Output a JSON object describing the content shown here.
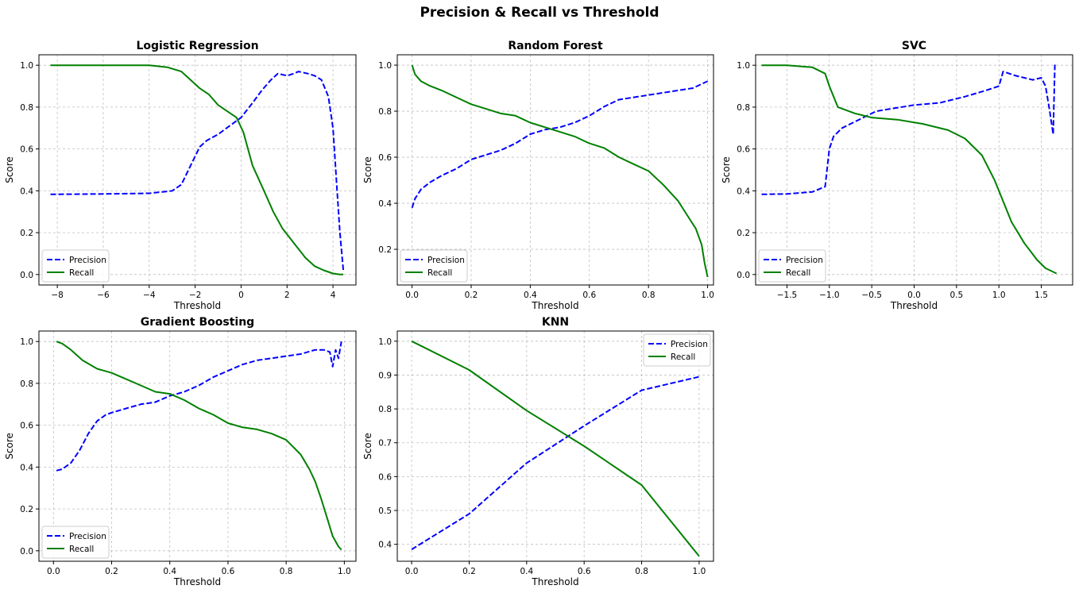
{
  "figure_title": "Precision & Recall vs Threshold",
  "chart_data": [
    {
      "type": "line",
      "title": "Logistic Regression",
      "xlabel": "Threshold",
      "ylabel": "Score",
      "xlim": [
        -8.8,
        5.0
      ],
      "ylim": [
        -0.05,
        1.05
      ],
      "xticks": [
        -8,
        -6,
        -4,
        -2,
        0,
        2,
        4
      ],
      "xtick_labels": [
        "−8",
        "−6",
        "−4",
        "−2",
        "0",
        "2",
        "4"
      ],
      "yticks": [
        0.0,
        0.2,
        0.4,
        0.6,
        0.8,
        1.0
      ],
      "ytick_labels": [
        "0.0",
        "0.2",
        "0.4",
        "0.6",
        "0.8",
        "1.0"
      ],
      "legend": "lower-left",
      "grid": true,
      "series": [
        {
          "name": "Precision",
          "color": "#0000ff",
          "style": "dashed",
          "x": [
            -8.3,
            -6.0,
            -4.0,
            -3.0,
            -2.6,
            -2.2,
            -1.8,
            -1.5,
            -1.0,
            -0.5,
            0.0,
            0.5,
            0.9,
            1.3,
            1.6,
            2.0,
            2.3,
            2.5,
            2.9,
            3.2,
            3.5,
            3.8,
            4.0,
            4.15,
            4.3,
            4.45
          ],
          "y": [
            0.383,
            0.385,
            0.388,
            0.4,
            0.43,
            0.52,
            0.61,
            0.64,
            0.67,
            0.71,
            0.75,
            0.82,
            0.88,
            0.93,
            0.96,
            0.95,
            0.96,
            0.97,
            0.96,
            0.95,
            0.93,
            0.85,
            0.7,
            0.45,
            0.2,
            0.02
          ]
        },
        {
          "name": "Recall",
          "color": "#008000",
          "style": "solid",
          "x": [
            -8.3,
            -6.0,
            -4.0,
            -3.2,
            -2.6,
            -2.2,
            -1.8,
            -1.4,
            -1.0,
            -0.6,
            -0.2,
            0.1,
            0.5,
            1.0,
            1.4,
            1.8,
            2.3,
            2.8,
            3.2,
            3.6,
            4.0,
            4.3,
            4.45
          ],
          "y": [
            1.0,
            1.0,
            1.0,
            0.99,
            0.97,
            0.93,
            0.89,
            0.86,
            0.81,
            0.78,
            0.75,
            0.68,
            0.52,
            0.4,
            0.3,
            0.22,
            0.15,
            0.08,
            0.04,
            0.02,
            0.005,
            0.0,
            0.0
          ]
        }
      ]
    },
    {
      "type": "line",
      "title": "Random Forest",
      "xlabel": "Threshold",
      "ylabel": "Score",
      "xlim": [
        -0.05,
        1.02
      ],
      "ylim": [
        0.045,
        1.045
      ],
      "xticks": [
        0.0,
        0.2,
        0.4,
        0.6,
        0.8,
        1.0
      ],
      "xtick_labels": [
        "0.0",
        "0.2",
        "0.4",
        "0.6",
        "0.8",
        "1.0"
      ],
      "yticks": [
        0.2,
        0.4,
        0.6,
        0.8,
        1.0
      ],
      "ytick_labels": [
        "0.2",
        "0.4",
        "0.6",
        "0.8",
        "1.0"
      ],
      "legend": "lower-left",
      "grid": true,
      "series": [
        {
          "name": "Precision",
          "color": "#0000ff",
          "style": "dashed",
          "x": [
            0.0,
            0.01,
            0.03,
            0.06,
            0.1,
            0.15,
            0.2,
            0.25,
            0.3,
            0.35,
            0.4,
            0.45,
            0.5,
            0.55,
            0.6,
            0.65,
            0.7,
            0.75,
            0.8,
            0.85,
            0.9,
            0.95,
            1.0
          ],
          "y": [
            0.38,
            0.42,
            0.46,
            0.49,
            0.52,
            0.55,
            0.59,
            0.61,
            0.63,
            0.66,
            0.7,
            0.72,
            0.73,
            0.75,
            0.78,
            0.82,
            0.85,
            0.86,
            0.87,
            0.88,
            0.89,
            0.9,
            0.93
          ]
        },
        {
          "name": "Recall",
          "color": "#008000",
          "style": "solid",
          "x": [
            0.0,
            0.01,
            0.03,
            0.06,
            0.1,
            0.15,
            0.2,
            0.25,
            0.3,
            0.35,
            0.4,
            0.45,
            0.5,
            0.55,
            0.6,
            0.65,
            0.7,
            0.75,
            0.8,
            0.85,
            0.9,
            0.93,
            0.96,
            0.98,
            0.99,
            1.0
          ],
          "y": [
            1.0,
            0.96,
            0.93,
            0.91,
            0.89,
            0.86,
            0.83,
            0.81,
            0.79,
            0.78,
            0.75,
            0.73,
            0.71,
            0.69,
            0.66,
            0.64,
            0.6,
            0.57,
            0.54,
            0.48,
            0.41,
            0.35,
            0.29,
            0.22,
            0.14,
            0.08
          ]
        }
      ]
    },
    {
      "type": "line",
      "title": "SVC",
      "xlabel": "Threshold",
      "ylabel": "Score",
      "xlim": [
        -1.87,
        1.87
      ],
      "ylim": [
        -0.05,
        1.05
      ],
      "xticks": [
        -1.5,
        -1.0,
        -0.5,
        0.0,
        0.5,
        1.0,
        1.5
      ],
      "xtick_labels": [
        "−1.5",
        "−1.0",
        "−0.5",
        "0.0",
        "0.5",
        "1.0",
        "1.5"
      ],
      "yticks": [
        0.0,
        0.2,
        0.4,
        0.6,
        0.8,
        1.0
      ],
      "ytick_labels": [
        "0.0",
        "0.2",
        "0.4",
        "0.6",
        "0.8",
        "1.0"
      ],
      "legend": "lower-left",
      "grid": true,
      "series": [
        {
          "name": "Precision",
          "color": "#0000ff",
          "style": "dashed",
          "x": [
            -1.8,
            -1.5,
            -1.2,
            -1.05,
            -1.0,
            -0.95,
            -0.85,
            -0.7,
            -0.55,
            -0.45,
            -0.3,
            0.0,
            0.3,
            0.6,
            0.85,
            1.0,
            1.05,
            1.2,
            1.4,
            1.5,
            1.55,
            1.6,
            1.64,
            1.66,
            1.68
          ],
          "y": [
            0.383,
            0.385,
            0.395,
            0.42,
            0.6,
            0.66,
            0.7,
            0.73,
            0.76,
            0.78,
            0.79,
            0.81,
            0.82,
            0.85,
            0.88,
            0.9,
            0.97,
            0.95,
            0.93,
            0.94,
            0.9,
            0.78,
            0.67,
            1.0,
            1.0
          ]
        },
        {
          "name": "Recall",
          "color": "#008000",
          "style": "solid",
          "x": [
            -1.8,
            -1.5,
            -1.2,
            -1.05,
            -1.0,
            -0.9,
            -0.7,
            -0.5,
            -0.2,
            0.1,
            0.4,
            0.6,
            0.8,
            0.95,
            1.05,
            1.15,
            1.3,
            1.45,
            1.55,
            1.68
          ],
          "y": [
            1.0,
            1.0,
            0.99,
            0.96,
            0.9,
            0.8,
            0.77,
            0.75,
            0.74,
            0.72,
            0.69,
            0.65,
            0.57,
            0.45,
            0.35,
            0.25,
            0.15,
            0.07,
            0.03,
            0.005
          ]
        }
      ]
    },
    {
      "type": "line",
      "title": "Gradient Boosting",
      "xlabel": "Threshold",
      "ylabel": "Score",
      "xlim": [
        -0.05,
        1.04
      ],
      "ylim": [
        -0.05,
        1.05
      ],
      "xticks": [
        0.0,
        0.2,
        0.4,
        0.6,
        0.8,
        1.0
      ],
      "xtick_labels": [
        "0.0",
        "0.2",
        "0.4",
        "0.6",
        "0.8",
        "1.0"
      ],
      "yticks": [
        0.0,
        0.2,
        0.4,
        0.6,
        0.8,
        1.0
      ],
      "ytick_labels": [
        "0.0",
        "0.2",
        "0.4",
        "0.6",
        "0.8",
        "1.0"
      ],
      "legend": "lower-left",
      "grid": true,
      "series": [
        {
          "name": "Precision",
          "color": "#0000ff",
          "style": "dashed",
          "x": [
            0.01,
            0.03,
            0.06,
            0.09,
            0.12,
            0.15,
            0.18,
            0.2,
            0.25,
            0.3,
            0.35,
            0.4,
            0.45,
            0.5,
            0.55,
            0.6,
            0.65,
            0.7,
            0.75,
            0.8,
            0.85,
            0.9,
            0.93,
            0.95,
            0.96,
            0.97,
            0.98,
            0.99
          ],
          "y": [
            0.383,
            0.39,
            0.42,
            0.48,
            0.56,
            0.62,
            0.65,
            0.66,
            0.68,
            0.7,
            0.71,
            0.74,
            0.76,
            0.79,
            0.83,
            0.86,
            0.89,
            0.91,
            0.92,
            0.93,
            0.94,
            0.96,
            0.96,
            0.95,
            0.88,
            0.96,
            0.92,
            1.0
          ]
        },
        {
          "name": "Recall",
          "color": "#008000",
          "style": "solid",
          "x": [
            0.01,
            0.03,
            0.06,
            0.1,
            0.15,
            0.2,
            0.25,
            0.3,
            0.35,
            0.4,
            0.45,
            0.5,
            0.55,
            0.6,
            0.65,
            0.7,
            0.75,
            0.8,
            0.85,
            0.88,
            0.9,
            0.92,
            0.94,
            0.96,
            0.98,
            0.99
          ],
          "y": [
            1.0,
            0.99,
            0.96,
            0.91,
            0.87,
            0.85,
            0.82,
            0.79,
            0.76,
            0.75,
            0.72,
            0.68,
            0.65,
            0.61,
            0.59,
            0.58,
            0.56,
            0.53,
            0.46,
            0.39,
            0.33,
            0.25,
            0.16,
            0.07,
            0.02,
            0.005
          ]
        }
      ]
    },
    {
      "type": "line",
      "title": "KNN",
      "xlabel": "Threshold",
      "ylabel": "Score",
      "xlim": [
        -0.05,
        1.05
      ],
      "ylim": [
        0.35,
        1.03
      ],
      "xticks": [
        0.0,
        0.2,
        0.4,
        0.6,
        0.8,
        1.0
      ],
      "xtick_labels": [
        "0.0",
        "0.2",
        "0.4",
        "0.6",
        "0.8",
        "1.0"
      ],
      "yticks": [
        0.4,
        0.5,
        0.6,
        0.7,
        0.8,
        0.9,
        1.0
      ],
      "ytick_labels": [
        "0.4",
        "0.5",
        "0.6",
        "0.7",
        "0.8",
        "0.9",
        "1.0"
      ],
      "legend": "top-right",
      "grid": true,
      "series": [
        {
          "name": "Precision",
          "color": "#0000ff",
          "style": "dashed",
          "x": [
            0.0,
            0.2,
            0.4,
            0.6,
            0.8,
            1.0
          ],
          "y": [
            0.385,
            0.49,
            0.64,
            0.75,
            0.855,
            0.895
          ]
        },
        {
          "name": "Recall",
          "color": "#008000",
          "style": "solid",
          "x": [
            0.0,
            0.2,
            0.4,
            0.6,
            0.8,
            1.0
          ],
          "y": [
            1.0,
            0.915,
            0.795,
            0.69,
            0.575,
            0.365
          ]
        }
      ]
    }
  ]
}
